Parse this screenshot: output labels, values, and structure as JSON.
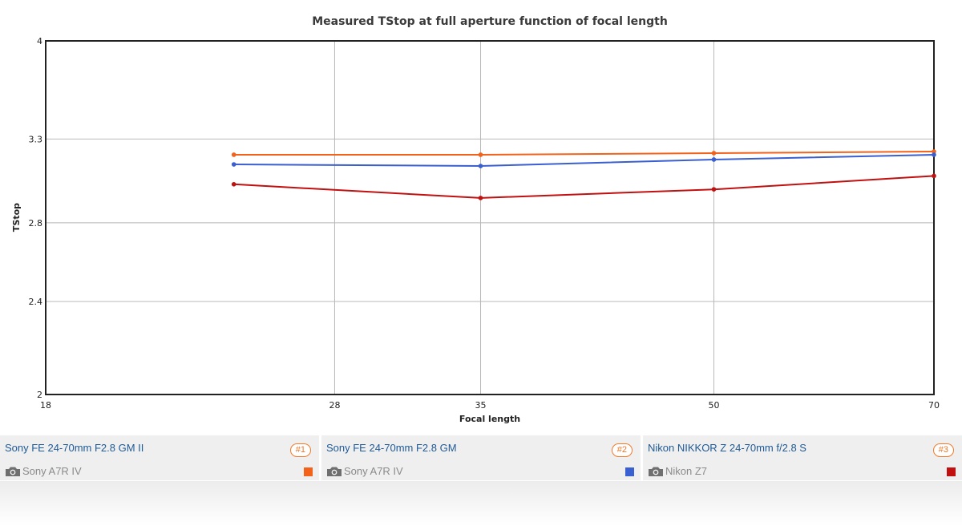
{
  "chart_data": {
    "type": "line",
    "title": "Measured TStop at full aperture function of focal length",
    "xlabel": "Focal length",
    "ylabel": "TStop",
    "x_ticks": [
      18,
      28,
      35,
      50,
      70
    ],
    "y_ticks": [
      2,
      2.4,
      2.8,
      3.3,
      4
    ],
    "xlim": [
      18,
      70
    ],
    "ylim": [
      2,
      4
    ],
    "scale": "log-log",
    "grid": true,
    "legend_position": "bottom",
    "series": [
      {
        "lens": "Sony FE 24-70mm F2.8 GM II",
        "camera": "Sony A7R IV",
        "badge": "#1",
        "color": "#f2621a",
        "points": [
          [
            24,
            3.2
          ],
          [
            35,
            3.2
          ],
          [
            50,
            3.21
          ],
          [
            70,
            3.22
          ]
        ]
      },
      {
        "lens": "Sony FE 24-70mm F2.8 GM",
        "camera": "Sony A7R IV",
        "badge": "#2",
        "color": "#3a5fd0",
        "points": [
          [
            24,
            3.14
          ],
          [
            35,
            3.13
          ],
          [
            50,
            3.17
          ],
          [
            70,
            3.2
          ]
        ]
      },
      {
        "lens": "Nikon NIKKOR Z 24-70mm f/2.8 S",
        "camera": "Nikon Z7",
        "badge": "#3",
        "color": "#c01010",
        "points": [
          [
            24,
            3.02
          ],
          [
            35,
            2.94
          ],
          [
            50,
            2.99
          ],
          [
            70,
            3.07
          ]
        ]
      }
    ]
  }
}
